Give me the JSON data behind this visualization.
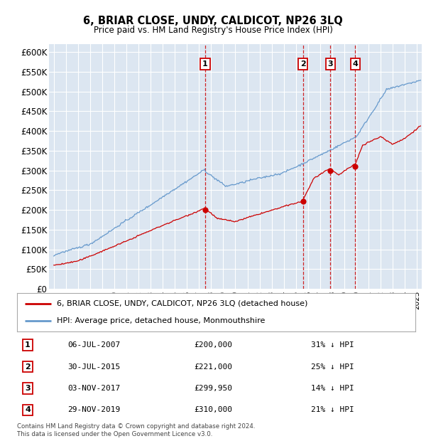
{
  "title": "6, BRIAR CLOSE, UNDY, CALDICOT, NP26 3LQ",
  "subtitle": "Price paid vs. HM Land Registry's House Price Index (HPI)",
  "ylim": [
    0,
    620000
  ],
  "yticks": [
    0,
    50000,
    100000,
    150000,
    200000,
    250000,
    300000,
    350000,
    400000,
    450000,
    500000,
    550000,
    600000
  ],
  "ytick_labels": [
    "£0",
    "£50K",
    "£100K",
    "£150K",
    "£200K",
    "£250K",
    "£300K",
    "£350K",
    "£400K",
    "£450K",
    "£500K",
    "£550K",
    "£600K"
  ],
  "background_color": "#dce6f1",
  "legend_line1": "6, BRIAR CLOSE, UNDY, CALDICOT, NP26 3LQ (detached house)",
  "legend_line2": "HPI: Average price, detached house, Monmouthshire",
  "red_line_color": "#cc0000",
  "blue_line_color": "#6699cc",
  "sale_events": [
    {
      "num": 1,
      "date": "06-JUL-2007",
      "price": "£200,000",
      "hpi": "31% ↓ HPI",
      "x_year": 2007.5
    },
    {
      "num": 2,
      "date": "30-JUL-2015",
      "price": "£221,000",
      "hpi": "25% ↓ HPI",
      "x_year": 2015.58
    },
    {
      "num": 3,
      "date": "03-NOV-2017",
      "price": "£299,950",
      "hpi": "14% ↓ HPI",
      "x_year": 2017.84
    },
    {
      "num": 4,
      "date": "29-NOV-2019",
      "price": "£310,000",
      "hpi": "21% ↓ HPI",
      "x_year": 2019.91
    }
  ],
  "sale_prices": [
    200000,
    221000,
    299950,
    310000
  ],
  "sale_years": [
    2007.5,
    2015.58,
    2017.84,
    2019.91
  ],
  "footer": "Contains HM Land Registry data © Crown copyright and database right 2024.\nThis data is licensed under the Open Government Licence v3.0.",
  "xlim_start": 1994.6,
  "xlim_end": 2025.4,
  "xtick_start": 1995,
  "xtick_end": 2025
}
